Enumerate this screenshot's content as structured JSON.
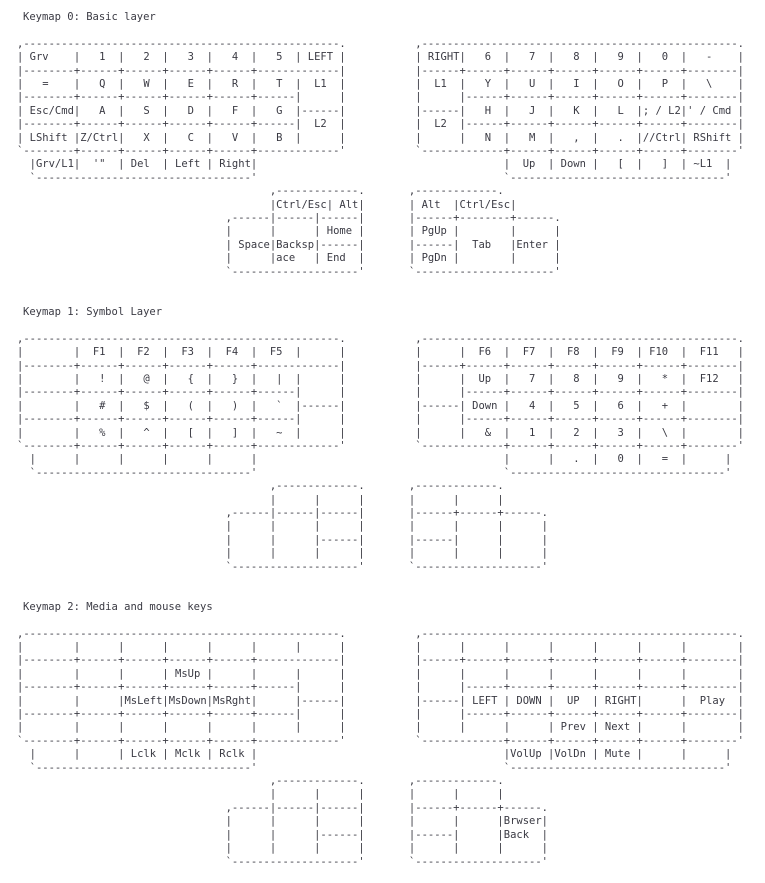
{
  "page": {
    "background_color": "#ffffff",
    "text_color": "#3a3a43",
    "description": "QMK ErgoDox keymap ASCII-art documentation with three layers"
  },
  "keymaps": [
    {
      "title": "Keymap 0: Basic layer",
      "art": [
        ",--------------------------------------------------.           ,--------------------------------------------------.",
        "| Grv    |   1  |   2  |   3  |   4  |   5  | LEFT |           | RIGHT|   6  |   7  |   8  |   9  |   0  |   -    |",
        "|--------+------+------+------+------+-------------|           |------+------+------+------+------+------+--------|",
        "|   =    |   Q  |   W  |   E  |   R  |   T  |  L1  |           |  L1  |   Y  |   U  |   I  |   O  |   P  |   \\    |",
        "|--------+------+------+------+------+------|      |           |      |------+------+------+------+------+--------|",
        "| Esc/Cmd|   A  |   S  |   D  |   F  |   G  |------|           |------|   H  |   J  |   K  |   L  |; / L2|' / Cmd |",
        "|--------+------+------+------+------+------|  L2  |           |  L2  |------+------+------+------+------+--------|",
        "| LShift |Z/Ctrl|   X  |   C  |   V  |   B  |      |           |      |   N  |   M  |   ,  |   .  |//Ctrl| RShift |",
        "`--------+------+------+------+------+-------------'           `-------------+------+------+------+------+--------'",
        "  |Grv/L1|  '\"  | Del  | Left | Right|                                       |  Up  | Down |   [  |   ]  | ~L1  |",
        "  `----------------------------------'                                       `----------------------------------'",
        "                                        ,-------------.       ,-------------.",
        "                                        |Ctrl/Esc| Alt|       | Alt  |Ctrl/Esc|",
        "                                 ,------|------|------|       |------+--------+------.",
        "                                 |      |      | Home |       | PgUp |        |      |",
        "                                 | Space|Backsp|------|       |------|  Tab   |Enter |",
        "                                 |      |ace   | End  |       | PgDn |        |      |",
        "                                 `--------------------'       `----------------------'"
      ]
    },
    {
      "title": "Keymap 1: Symbol Layer",
      "art": [
        ",--------------------------------------------------.           ,--------------------------------------------------.",
        "|        |  F1  |  F2  |  F3  |  F4  |  F5  |      |           |      |  F6  |  F7  |  F8  |  F9  | F10  |  F11   |",
        "|--------+------+------+------+------+-------------|           |------+------+------+------+------+------+--------|",
        "|        |   !  |   @  |   {  |   }  |   |  |      |           |      |  Up  |   7  |   8  |   9  |   *  |  F12   |",
        "|--------+------+------+------+------+------|      |           |      |------+------+------+------+------+--------|",
        "|        |   #  |   $  |   (  |   )  |   `  |------|           |------| Down |   4  |   5  |   6  |   +  |        |",
        "|--------+------+------+------+------+------|      |           |      |------+------+------+------+------+--------|",
        "|        |   %  |   ^  |   [  |   ]  |   ~  |      |           |      |   &  |   1  |   2  |   3  |   \\  |        |",
        "`--------+------+------+------+------+-------------'           `-------------+------+------+------+------+--------'",
        "  |      |      |      |      |      |                                       |      |   .  |   0  |   =  |      |",
        "  `----------------------------------'                                       `----------------------------------'",
        "                                        ,-------------.       ,-------------.",
        "                                        |      |      |       |      |      |",
        "                                 ,------|------|------|       |------+------+------.",
        "                                 |      |      |      |       |      |      |      |",
        "                                 |      |      |------|       |------|      |      |",
        "                                 |      |      |      |       |      |      |      |",
        "                                 `--------------------'       `--------------------'"
      ]
    },
    {
      "title": "Keymap 2: Media and mouse keys",
      "art": [
        ",--------------------------------------------------.           ,--------------------------------------------------.",
        "|        |      |      |      |      |      |      |           |      |      |      |      |      |      |        |",
        "|--------+------+------+------+------+-------------|           |------+------+------+------+------+------+--------|",
        "|        |      |      | MsUp |      |      |      |           |      |      |      |      |      |      |        |",
        "|--------+------+------+------+------+------|      |           |      |------+------+------+------+------+--------|",
        "|        |      |MsLeft|MsDown|MsRght|      |------|           |------| LEFT | DOWN |  UP  | RIGHT|      |  Play  |",
        "|--------+------+------+------+------+------|      |           |      |------+------+------+------+------+--------|",
        "|        |      |      |      |      |      |      |           |      |      |      | Prev | Next |      |        |",
        "`--------+------+------+------+------+-------------'           `-------------+------+------+------+------+--------'",
        "  |      |      | Lclk | Mclk | Rclk |                                       |VolUp |VolDn | Mute |      |      |",
        "  `----------------------------------'                                       `----------------------------------'",
        "                                        ,-------------.       ,-------------.",
        "                                        |      |      |       |      |      |",
        "                                 ,------|------|------|       |------+------+------.",
        "                                 |      |      |      |       |      |      |Brwser|",
        "                                 |      |      |------|       |------|      |Back  |",
        "                                 |      |      |      |       |      |      |      |",
        "                                 `--------------------'       `--------------------'"
      ]
    }
  ]
}
